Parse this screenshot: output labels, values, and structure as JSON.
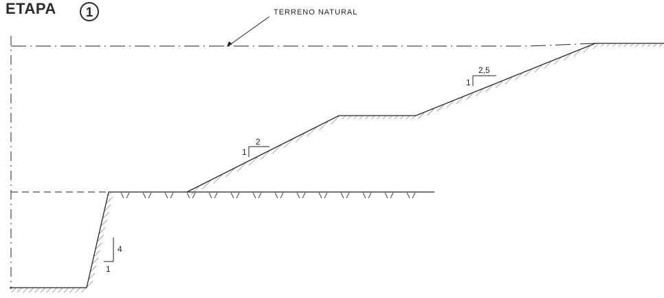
{
  "header": {
    "title": "ETAPA",
    "stage_number": "1"
  },
  "labels": {
    "natural_ground": "TERRENO NATURAL"
  },
  "slopes": {
    "lower_wall": {
      "vertical": "4",
      "horizontal": "1"
    },
    "middle_slope": {
      "vertical": "1",
      "horizontal": "2"
    },
    "upper_slope": {
      "vertical": "1",
      "horizontal": "2,5"
    }
  },
  "colors": {
    "line": "#222222",
    "hatch": "#555555"
  }
}
